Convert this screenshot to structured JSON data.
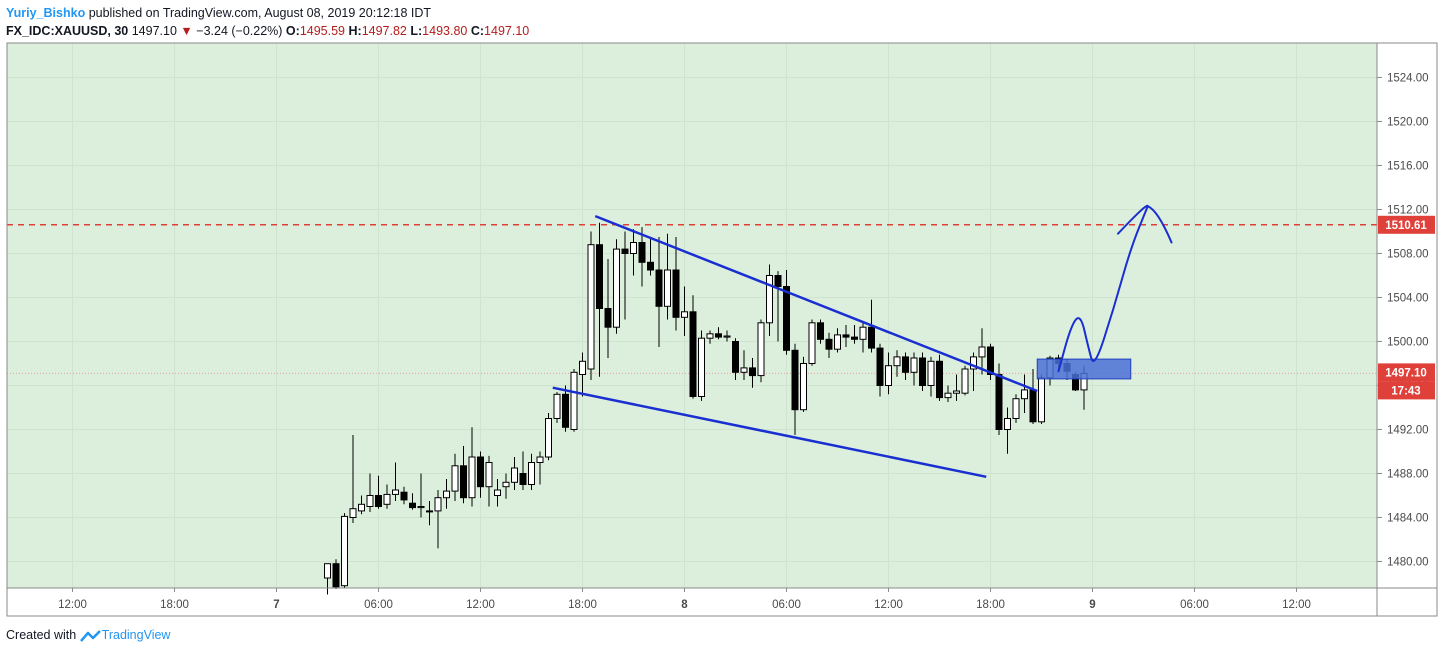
{
  "header": {
    "author": "Yuriy_Bishko",
    "published": "published on TradingView.com, August 08, 2019 20:12:18 IDT",
    "symbol": "FX_IDC:XAUUSD, 30",
    "last": "1497.10",
    "down_arrow": "▼",
    "change": "−3.24 (−0.22%)",
    "o_label": "O:",
    "o_value": "1495.59",
    "h_label": "H:",
    "h_value": "1497.82",
    "l_label": "L:",
    "l_value": "1493.80",
    "c_label": "C:",
    "c_value": "1497.10"
  },
  "footer": {
    "created_with": "Created with",
    "brand": "TradingView"
  },
  "colors": {
    "plot_bg": "#dcefdc",
    "candle_up_fill": "#ffffff",
    "candle_down_fill": "#000000",
    "trendline": "#1a2fd1",
    "drawing": "#1a2fd1",
    "resistance_line": "#e0403a",
    "price_tag": "#e0403a",
    "zone_fill": "#4a6fd6"
  },
  "chart_data": {
    "type": "candlestick",
    "title": "",
    "xlabel": "",
    "ylabel": "",
    "ylim": [
      1476.8,
      1527.0
    ],
    "y_ticks": [
      "1480.00",
      "1484.00",
      "1488.00",
      "1492.00",
      "1496.00",
      "1500.00",
      "1504.00",
      "1508.00",
      "1512.00",
      "1516.00",
      "1520.00",
      "1524.00"
    ],
    "x_ticks": [
      "12:00",
      "18:00",
      "7",
      "06:00",
      "12:00",
      "18:00",
      "8",
      "06:00",
      "12:00",
      "18:00",
      "9",
      "06:00",
      "12:00"
    ],
    "x_tick_bars": [
      -30,
      -18,
      -6,
      6,
      18,
      30,
      42,
      54,
      66,
      78,
      90,
      102,
      114
    ],
    "bar_interval": "30 min",
    "candles": [
      {
        "o": 1478.5,
        "h": 1479.8,
        "l": 1477.0,
        "c": 1479.8
      },
      {
        "o": 1479.8,
        "h": 1480.2,
        "l": 1477.5,
        "c": 1477.7
      },
      {
        "o": 1477.8,
        "h": 1484.4,
        "l": 1477.6,
        "c": 1484.1
      },
      {
        "o": 1484.0,
        "h": 1491.5,
        "l": 1483.5,
        "c": 1484.8
      },
      {
        "o": 1484.6,
        "h": 1486.0,
        "l": 1484.3,
        "c": 1485.2
      },
      {
        "o": 1485.0,
        "h": 1488.0,
        "l": 1484.5,
        "c": 1486.0
      },
      {
        "o": 1486.0,
        "h": 1487.8,
        "l": 1484.8,
        "c": 1485.0
      },
      {
        "o": 1485.2,
        "h": 1487.0,
        "l": 1484.8,
        "c": 1486.1
      },
      {
        "o": 1486.1,
        "h": 1489.0,
        "l": 1485.5,
        "c": 1486.5
      },
      {
        "o": 1486.3,
        "h": 1486.8,
        "l": 1485.2,
        "c": 1485.6
      },
      {
        "o": 1485.3,
        "h": 1486.2,
        "l": 1484.7,
        "c": 1484.9
      },
      {
        "o": 1484.9,
        "h": 1488.0,
        "l": 1484.0,
        "c": 1485.0
      },
      {
        "o": 1484.6,
        "h": 1485.5,
        "l": 1483.3,
        "c": 1484.6
      },
      {
        "o": 1484.6,
        "h": 1486.5,
        "l": 1481.2,
        "c": 1485.8
      },
      {
        "o": 1485.8,
        "h": 1487.5,
        "l": 1484.8,
        "c": 1486.4
      },
      {
        "o": 1486.4,
        "h": 1489.8,
        "l": 1485.5,
        "c": 1488.7
      },
      {
        "o": 1488.7,
        "h": 1490.5,
        "l": 1485.3,
        "c": 1485.8
      },
      {
        "o": 1485.8,
        "h": 1492.2,
        "l": 1485.0,
        "c": 1489.5
      },
      {
        "o": 1489.5,
        "h": 1490.0,
        "l": 1485.8,
        "c": 1486.8
      },
      {
        "o": 1486.8,
        "h": 1489.6,
        "l": 1485.0,
        "c": 1489.0
      },
      {
        "o": 1486.0,
        "h": 1487.5,
        "l": 1485.0,
        "c": 1486.5
      },
      {
        "o": 1486.8,
        "h": 1488.0,
        "l": 1485.7,
        "c": 1487.2
      },
      {
        "o": 1487.2,
        "h": 1489.5,
        "l": 1486.5,
        "c": 1488.5
      },
      {
        "o": 1488.0,
        "h": 1490.0,
        "l": 1486.5,
        "c": 1487.0
      },
      {
        "o": 1487.0,
        "h": 1489.8,
        "l": 1486.5,
        "c": 1489.0
      },
      {
        "o": 1489.0,
        "h": 1490.0,
        "l": 1487.0,
        "c": 1489.5
      },
      {
        "o": 1489.5,
        "h": 1493.5,
        "l": 1489.2,
        "c": 1493.0
      },
      {
        "o": 1493.0,
        "h": 1495.4,
        "l": 1492.6,
        "c": 1495.2
      },
      {
        "o": 1495.2,
        "h": 1496.0,
        "l": 1491.8,
        "c": 1492.2
      },
      {
        "o": 1492.0,
        "h": 1497.5,
        "l": 1491.8,
        "c": 1497.2
      },
      {
        "o": 1497.0,
        "h": 1499.0,
        "l": 1495.0,
        "c": 1498.2
      },
      {
        "o": 1497.5,
        "h": 1510.0,
        "l": 1496.5,
        "c": 1508.8
      },
      {
        "o": 1508.8,
        "h": 1510.8,
        "l": 1496.8,
        "c": 1503.0
      },
      {
        "o": 1503.0,
        "h": 1507.5,
        "l": 1498.5,
        "c": 1501.3
      },
      {
        "o": 1501.3,
        "h": 1509.3,
        "l": 1500.7,
        "c": 1508.4
      },
      {
        "o": 1508.4,
        "h": 1510.0,
        "l": 1502.0,
        "c": 1508.0
      },
      {
        "o": 1508.0,
        "h": 1510.2,
        "l": 1506.0,
        "c": 1509.0
      },
      {
        "o": 1509.0,
        "h": 1510.4,
        "l": 1505.0,
        "c": 1507.2
      },
      {
        "o": 1507.2,
        "h": 1509.5,
        "l": 1506.0,
        "c": 1506.5
      },
      {
        "o": 1506.5,
        "h": 1509.5,
        "l": 1499.5,
        "c": 1503.2
      },
      {
        "o": 1503.2,
        "h": 1509.8,
        "l": 1502.0,
        "c": 1506.5
      },
      {
        "o": 1506.5,
        "h": 1509.5,
        "l": 1501.0,
        "c": 1502.2
      },
      {
        "o": 1502.2,
        "h": 1505.0,
        "l": 1500.5,
        "c": 1502.7
      },
      {
        "o": 1502.7,
        "h": 1504.2,
        "l": 1494.8,
        "c": 1495.0
      },
      {
        "o": 1495.0,
        "h": 1501.0,
        "l": 1494.6,
        "c": 1500.3
      },
      {
        "o": 1500.3,
        "h": 1501.0,
        "l": 1499.8,
        "c": 1500.7
      },
      {
        "o": 1500.7,
        "h": 1501.3,
        "l": 1500.2,
        "c": 1500.4
      },
      {
        "o": 1500.4,
        "h": 1501.0,
        "l": 1500.0,
        "c": 1500.5
      },
      {
        "o": 1500.0,
        "h": 1500.3,
        "l": 1496.5,
        "c": 1497.2
      },
      {
        "o": 1497.2,
        "h": 1499.2,
        "l": 1496.5,
        "c": 1497.6
      },
      {
        "o": 1497.6,
        "h": 1498.5,
        "l": 1495.8,
        "c": 1496.9
      },
      {
        "o": 1496.9,
        "h": 1502.0,
        "l": 1496.3,
        "c": 1501.7
      },
      {
        "o": 1501.7,
        "h": 1507.0,
        "l": 1500.5,
        "c": 1506.0
      },
      {
        "o": 1506.0,
        "h": 1506.4,
        "l": 1500.0,
        "c": 1505.0
      },
      {
        "o": 1505.0,
        "h": 1506.5,
        "l": 1498.8,
        "c": 1499.2
      },
      {
        "o": 1499.2,
        "h": 1499.8,
        "l": 1491.5,
        "c": 1493.8
      },
      {
        "o": 1493.8,
        "h": 1498.6,
        "l": 1493.6,
        "c": 1498.0
      },
      {
        "o": 1498.0,
        "h": 1502.0,
        "l": 1497.8,
        "c": 1501.7
      },
      {
        "o": 1501.7,
        "h": 1502.0,
        "l": 1499.8,
        "c": 1500.2
      },
      {
        "o": 1500.2,
        "h": 1500.8,
        "l": 1498.5,
        "c": 1499.3
      },
      {
        "o": 1499.3,
        "h": 1501.2,
        "l": 1499.0,
        "c": 1500.6
      },
      {
        "o": 1500.6,
        "h": 1501.5,
        "l": 1499.5,
        "c": 1500.4
      },
      {
        "o": 1500.4,
        "h": 1501.5,
        "l": 1499.8,
        "c": 1500.2
      },
      {
        "o": 1500.2,
        "h": 1501.7,
        "l": 1499.0,
        "c": 1501.3
      },
      {
        "o": 1501.3,
        "h": 1503.8,
        "l": 1499.0,
        "c": 1499.4
      },
      {
        "o": 1499.4,
        "h": 1499.8,
        "l": 1495.0,
        "c": 1496.0
      },
      {
        "o": 1496.0,
        "h": 1499.0,
        "l": 1495.2,
        "c": 1497.8
      },
      {
        "o": 1497.8,
        "h": 1499.2,
        "l": 1496.8,
        "c": 1498.6
      },
      {
        "o": 1498.6,
        "h": 1499.0,
        "l": 1496.5,
        "c": 1497.2
      },
      {
        "o": 1497.2,
        "h": 1499.0,
        "l": 1496.0,
        "c": 1498.5
      },
      {
        "o": 1498.5,
        "h": 1499.0,
        "l": 1495.5,
        "c": 1496.0
      },
      {
        "o": 1496.0,
        "h": 1498.6,
        "l": 1495.0,
        "c": 1498.2
      },
      {
        "o": 1498.2,
        "h": 1498.8,
        "l": 1494.6,
        "c": 1494.9
      },
      {
        "o": 1494.9,
        "h": 1496.0,
        "l": 1494.5,
        "c": 1495.3
      },
      {
        "o": 1495.3,
        "h": 1497.0,
        "l": 1494.6,
        "c": 1495.5
      },
      {
        "o": 1495.3,
        "h": 1497.8,
        "l": 1495.1,
        "c": 1497.5
      },
      {
        "o": 1497.5,
        "h": 1499.0,
        "l": 1495.5,
        "c": 1498.6
      },
      {
        "o": 1498.6,
        "h": 1501.2,
        "l": 1497.0,
        "c": 1499.5
      },
      {
        "o": 1499.5,
        "h": 1499.8,
        "l": 1496.5,
        "c": 1497.0
      },
      {
        "o": 1497.0,
        "h": 1498.0,
        "l": 1491.5,
        "c": 1492.0
      },
      {
        "o": 1492.0,
        "h": 1494.0,
        "l": 1489.8,
        "c": 1493.0
      },
      {
        "o": 1493.0,
        "h": 1495.2,
        "l": 1492.6,
        "c": 1494.8
      },
      {
        "o": 1494.8,
        "h": 1497.0,
        "l": 1493.5,
        "c": 1495.6
      },
      {
        "o": 1495.6,
        "h": 1497.5,
        "l": 1492.5,
        "c": 1492.7
      },
      {
        "o": 1492.7,
        "h": 1497.0,
        "l": 1492.5,
        "c": 1496.7
      },
      {
        "o": 1496.7,
        "h": 1498.7,
        "l": 1496.0,
        "c": 1498.5
      },
      {
        "o": 1498.5,
        "h": 1498.8,
        "l": 1497.5,
        "c": 1498.0
      },
      {
        "o": 1498.0,
        "h": 1498.4,
        "l": 1496.5,
        "c": 1497.3
      },
      {
        "o": 1497.0,
        "h": 1497.2,
        "l": 1495.5,
        "c": 1495.6
      },
      {
        "o": 1495.6,
        "h": 1497.8,
        "l": 1493.8,
        "c": 1497.1
      }
    ],
    "resistance_level": 1510.61,
    "last_price": 1497.1,
    "price_tags": [
      "1510.61",
      "1497.10",
      "17:43"
    ],
    "hidden_label": "1495.59",
    "trendlines": [
      {
        "name": "upper",
        "from": {
          "bar": 31.5,
          "price": 1511.4
        },
        "to": {
          "bar": 83.5,
          "price": 1495.5
        }
      },
      {
        "name": "lower",
        "from": {
          "bar": 26.5,
          "price": 1495.8
        },
        "to": {
          "bar": 77.5,
          "price": 1487.7
        }
      }
    ],
    "zone": {
      "from_bar": 83.5,
      "to_bar": 94.5,
      "top": 1498.4,
      "bottom": 1496.6
    },
    "projection_path": [
      {
        "bar": 86,
        "price": 1497.3
      },
      {
        "bar": 87.5,
        "price": 1501.5
      },
      {
        "bar": 88.6,
        "price": 1502.5
      },
      {
        "bar": 89.5,
        "price": 1499.5
      },
      {
        "bar": 90.2,
        "price": 1497.5
      },
      {
        "bar": 92.5,
        "price": 1503.0
      },
      {
        "bar": 94.5,
        "price": 1508.5
      },
      {
        "bar": 96.5,
        "price": 1512.3
      }
    ],
    "projection_arrow": [
      {
        "bar": 93,
        "price": 1509.8
      },
      {
        "bar": 96.5,
        "price": 1512.3
      },
      {
        "bar": 99.3,
        "price": 1509.0
      }
    ]
  }
}
